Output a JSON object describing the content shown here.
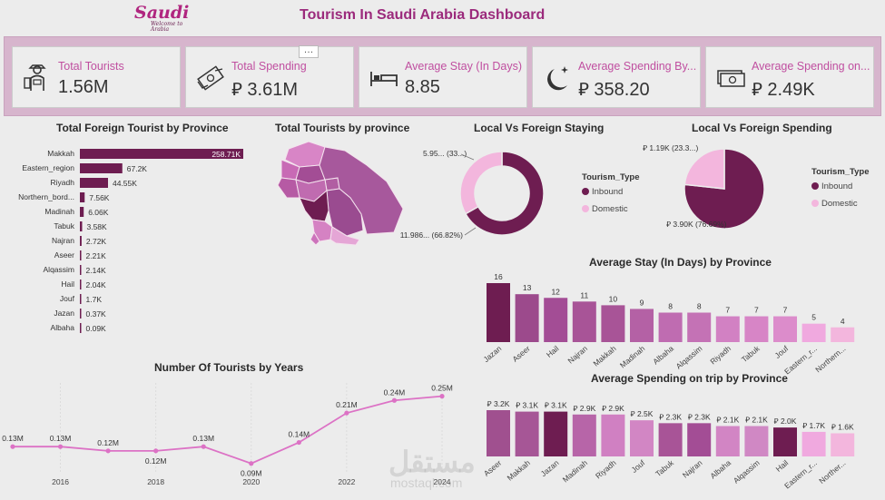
{
  "header": {
    "logo_main": "Saudi",
    "logo_sub": "Welcome to Arabia",
    "title": "Tourism In Saudi Arabia Dashboard"
  },
  "kpis": [
    {
      "label": "Total Tourists",
      "value": "1.56M",
      "icon": "tourist-icon"
    },
    {
      "label": "Total Spending",
      "value": "⃁ 3.61M",
      "icon": "money-icon"
    },
    {
      "label": "Average Stay (In Days)",
      "value": "8.85",
      "icon": "bed-icon"
    },
    {
      "label": "Average Spending By...",
      "value": "⃁ 358.20",
      "icon": "moon-icon"
    },
    {
      "label": "Average Spending on...",
      "value": "⃁ 2.49K",
      "icon": "cash-icon"
    }
  ],
  "more_button": "…",
  "colors": {
    "dark": "#6e1d51",
    "mid": "#b0569a",
    "light": "#e79ed3",
    "pink": "#f3b6dd",
    "line": "#dc72c5"
  },
  "chart_data": [
    {
      "type": "bar",
      "orientation": "horizontal",
      "title": "Total Foreign Tourist by Province",
      "categories": [
        "Makkah",
        "Eastern_region",
        "Riyadh",
        "Northern_bord...",
        "Madinah",
        "Tabuk",
        "Najran",
        "Aseer",
        "Alqassim",
        "Hail",
        "Jouf",
        "Jazan",
        "Albaha"
      ],
      "values": [
        258710,
        67200,
        44550,
        7560,
        6060,
        3580,
        2720,
        2210,
        2140,
        2040,
        1700,
        370,
        90
      ],
      "labels": [
        "258.71K",
        "67.2K",
        "44.55K",
        "7.56K",
        "6.06K",
        "3.58K",
        "2.72K",
        "2.21K",
        "2.14K",
        "2.04K",
        "1.7K",
        "0.37K",
        "0.09K"
      ]
    },
    {
      "type": "map",
      "title": "Total Tourists by province"
    },
    {
      "type": "pie",
      "style": "donut",
      "title": "Local Vs Foreign Staying",
      "legend_title": "Tourism_Type",
      "labels": [
        "Inbound",
        "Domestic"
      ],
      "values": [
        66.82,
        33.18
      ],
      "data_labels": [
        "11.986... (66.82%)",
        "5.95... (33...)"
      ]
    },
    {
      "type": "pie",
      "title": "Local Vs Foreign Spending",
      "legend_title": "Tourism_Type",
      "labels": [
        "Inbound",
        "Domestic"
      ],
      "values": [
        76.69,
        23.31
      ],
      "data_labels": [
        "⃁ 3.90K (76.69%)",
        "⃁ 1.19K (23.3...)"
      ]
    },
    {
      "type": "bar",
      "title": "Average Stay (In Days) by Province",
      "categories": [
        "Jazan",
        "Aseer",
        "Hail",
        "Najran",
        "Makkah",
        "Madinah",
        "Albaha",
        "Alqassim",
        "Riyadh",
        "Tabuk",
        "Jouf",
        "Eastern_r...",
        "Northern..."
      ],
      "values": [
        16,
        13,
        12,
        11,
        10,
        9,
        8,
        8,
        7,
        7,
        7,
        5,
        4
      ]
    },
    {
      "type": "line",
      "title": "Number Of Tourists by Years",
      "x": [
        2015,
        2016,
        2017,
        2018,
        2019,
        2020,
        2021,
        2022,
        2023,
        2024
      ],
      "values": [
        0.13,
        0.13,
        0.12,
        0.12,
        0.13,
        0.09,
        0.14,
        0.21,
        0.24,
        0.25
      ],
      "labels": [
        "0.13M",
        "0.13M",
        "0.12M",
        "0.12M",
        "0.13M",
        "0.09M",
        "0.14M",
        "0.21M",
        "0.24M",
        "0.25M"
      ],
      "xticks": [
        "2016",
        "2018",
        "2020",
        "2022",
        "2024"
      ]
    },
    {
      "type": "bar",
      "title": "Average Spending on trip by Province",
      "categories": [
        "Aseer",
        "Makkah",
        "Jazan",
        "Madinah",
        "Riyadh",
        "Jouf",
        "Tabuk",
        "Najran",
        "Albaha",
        "Alqassim",
        "Hail",
        "Eastern_r...",
        "Norther..."
      ],
      "values": [
        3.2,
        3.1,
        3.1,
        2.9,
        2.9,
        2.5,
        2.3,
        2.3,
        2.1,
        2.1,
        2.0,
        1.7,
        1.6
      ],
      "labels": [
        "⃁ 3.2K",
        "⃁ 3.1K",
        "⃁ 3.1K",
        "⃁ 2.9K",
        "⃁ 2.9K",
        "⃁ 2.5K",
        "⃁ 2.3K",
        "⃁ 2.3K",
        "⃁ 2.1K",
        "⃁ 2.1K",
        "⃁ 2.0K",
        "⃁ 1.7K",
        "⃁ 1.6K"
      ]
    }
  ],
  "watermark": {
    "main": "مستقل",
    "sub": "mostaql.com"
  }
}
